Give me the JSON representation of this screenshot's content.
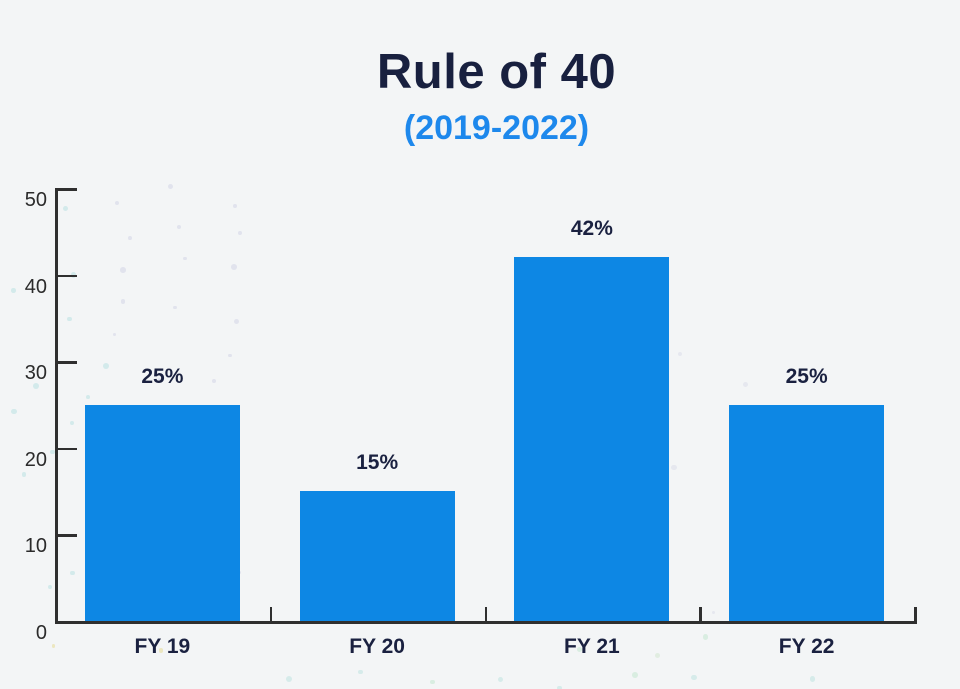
{
  "header": {
    "title": "Rule of 40",
    "subtitle": "(2019-2022)",
    "title_color": "#18203f",
    "subtitle_color": "#1d88ec"
  },
  "chart_data": {
    "type": "bar",
    "title": "Rule of 40",
    "subtitle": "(2019-2022)",
    "categories": [
      "FY 19",
      "FY 20",
      "FY 21",
      "FY 22"
    ],
    "values": [
      25,
      15,
      42,
      25
    ],
    "value_labels": [
      "25%",
      "15%",
      "42%",
      "25%"
    ],
    "xlabel": "",
    "ylabel": "",
    "ylim": [
      0,
      50
    ],
    "ytick_step": 10,
    "ytick_labels": [
      "0",
      "10",
      "20",
      "30",
      "40",
      "50"
    ],
    "grid": false,
    "legend_position": "none",
    "bar_color": "#0d87e4",
    "axis_color": "#2f2f2f",
    "tick_label_color": "#2b2b2b",
    "value_label_color": "#1a2140",
    "category_label_color": "#1a2140",
    "background_color": "#f3f5f6"
  }
}
